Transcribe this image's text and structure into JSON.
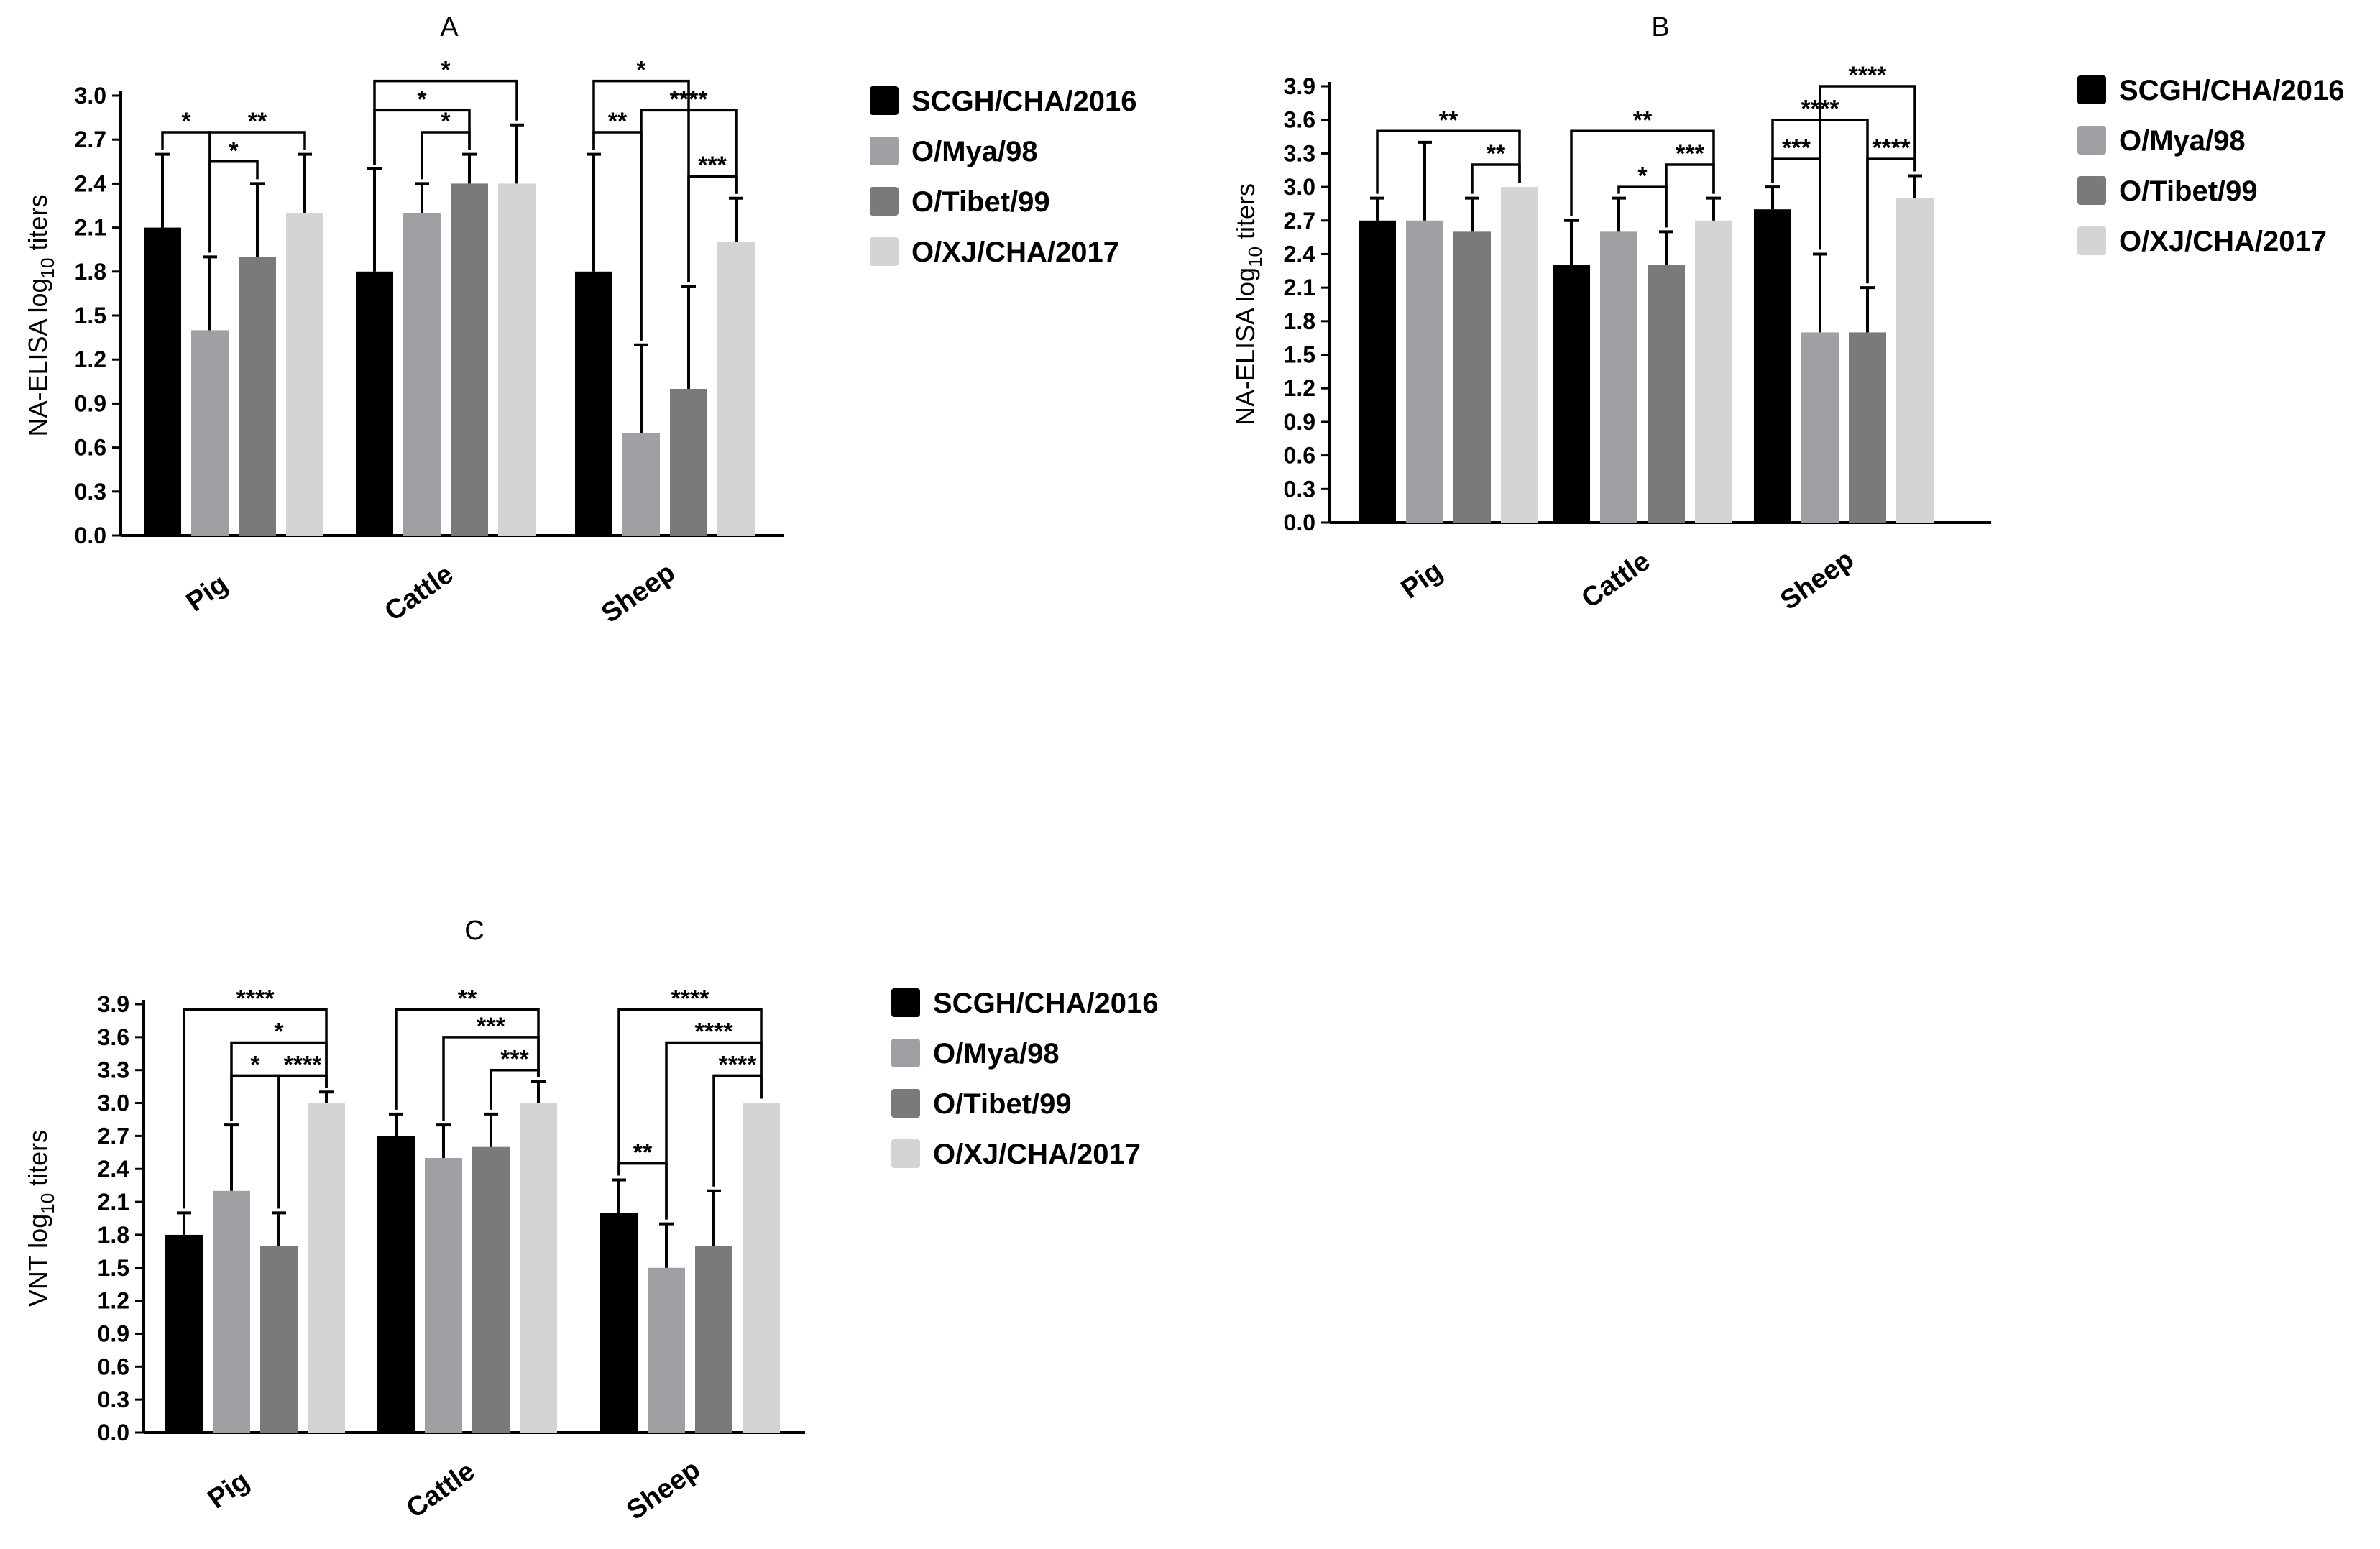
{
  "chart_data": [
    {
      "type": "bar",
      "title": "A",
      "ylabel_prefix": "NA-ELISA log",
      "ylabel_sub": "10",
      "ylabel_suffix": " titers",
      "xlabel": "",
      "ylim": [
        0,
        3.0
      ],
      "yticks": [
        "0.0",
        "0.3",
        "0.6",
        "0.9",
        "1.2",
        "1.5",
        "1.8",
        "2.1",
        "2.4",
        "2.7",
        "3.0"
      ],
      "categories": [
        "Pig",
        "Cattle",
        "Sheep"
      ],
      "series": [
        {
          "name": "SCGH/CHA/2016",
          "color": "#000000",
          "values": [
            2.1,
            1.8,
            1.8
          ],
          "errors": [
            0.5,
            0.7,
            0.8
          ]
        },
        {
          "name": "O/Mya/98",
          "color": "#a0a0a4",
          "values": [
            1.4,
            2.2,
            0.7
          ],
          "errors": [
            0.5,
            0.2,
            0.6
          ]
        },
        {
          "name": "O/Tibet/99",
          "color": "#7a7a7c",
          "values": [
            1.9,
            2.4,
            1.0
          ],
          "errors": [
            0.5,
            0.2,
            0.7
          ]
        },
        {
          "name": "O/XJ/CHA/2017",
          "color": "#d4d4d4",
          "values": [
            2.2,
            2.4,
            2.0
          ],
          "errors": [
            0.4,
            0.4,
            0.3
          ]
        }
      ],
      "annotations": [
        {
          "cat": 0,
          "a": 0,
          "b": 1,
          "level": 2.75,
          "label": "*"
        },
        {
          "cat": 0,
          "a": 1,
          "b": 2,
          "level": 2.55,
          "label": "*"
        },
        {
          "cat": 0,
          "a": 1,
          "b": 3,
          "level": 2.75,
          "label": "**"
        },
        {
          "cat": 1,
          "a": 0,
          "b": 3,
          "level": 3.1,
          "label": "*"
        },
        {
          "cat": 1,
          "a": 0,
          "b": 2,
          "level": 2.9,
          "label": "*"
        },
        {
          "cat": 1,
          "a": 1,
          "b": 2,
          "level": 2.75,
          "label": "*"
        },
        {
          "cat": 2,
          "a": 0,
          "b": 2,
          "level": 3.1,
          "label": "*"
        },
        {
          "cat": 2,
          "a": 0,
          "b": 1,
          "level": 2.75,
          "label": "**"
        },
        {
          "cat": 2,
          "a": 1,
          "b": 3,
          "level": 2.9,
          "label": "****"
        },
        {
          "cat": 2,
          "a": 2,
          "b": 3,
          "level": 2.45,
          "label": "***"
        }
      ],
      "legend_position": "right"
    },
    {
      "type": "bar",
      "title": "B",
      "ylabel_prefix": "NA-ELISA log",
      "ylabel_sub": "10",
      "ylabel_suffix": " titers",
      "xlabel": "",
      "ylim": [
        0,
        3.9
      ],
      "yticks": [
        "0.0",
        "0.3",
        "0.6",
        "0.9",
        "1.2",
        "1.5",
        "1.8",
        "2.1",
        "2.4",
        "2.7",
        "3.0",
        "3.3",
        "3.6",
        "3.9"
      ],
      "categories": [
        "Pig",
        "Cattle",
        "Sheep"
      ],
      "series": [
        {
          "name": "SCGH/CHA/2016",
          "color": "#000000",
          "values": [
            2.7,
            2.3,
            2.8
          ],
          "errors": [
            0.2,
            0.4,
            0.2
          ]
        },
        {
          "name": "O/Mya/98",
          "color": "#a0a0a4",
          "values": [
            2.7,
            2.6,
            1.7
          ],
          "errors": [
            0.7,
            0.3,
            0.7
          ]
        },
        {
          "name": "O/Tibet/99",
          "color": "#7a7a7c",
          "values": [
            2.6,
            2.3,
            1.7
          ],
          "errors": [
            0.3,
            0.3,
            0.4
          ]
        },
        {
          "name": "O/XJ/CHA/2017",
          "color": "#d4d4d4",
          "values": [
            3.0,
            2.7,
            2.9
          ],
          "errors": [
            0.0,
            0.2,
            0.2
          ]
        }
      ],
      "annotations": [
        {
          "cat": 0,
          "a": 0,
          "b": 3,
          "level": 3.5,
          "label": "**"
        },
        {
          "cat": 0,
          "a": 2,
          "b": 3,
          "level": 3.2,
          "label": "**"
        },
        {
          "cat": 1,
          "a": 0,
          "b": 3,
          "level": 3.5,
          "label": "**"
        },
        {
          "cat": 1,
          "a": 1,
          "b": 2,
          "level": 3.0,
          "label": "*"
        },
        {
          "cat": 1,
          "a": 2,
          "b": 3,
          "level": 3.2,
          "label": "***"
        },
        {
          "cat": 2,
          "a": 1,
          "b": 3,
          "level": 3.9,
          "label": "****"
        },
        {
          "cat": 2,
          "a": 0,
          "b": 2,
          "level": 3.6,
          "label": "****"
        },
        {
          "cat": 2,
          "a": 0,
          "b": 1,
          "level": 3.25,
          "label": "***"
        },
        {
          "cat": 2,
          "a": 2,
          "b": 3,
          "level": 3.25,
          "label": "****"
        }
      ],
      "legend_position": "right"
    },
    {
      "type": "bar",
      "title": "C",
      "ylabel_prefix": "VNT log",
      "ylabel_sub": "10",
      "ylabel_suffix": " titers",
      "xlabel": "",
      "ylim": [
        0,
        3.9
      ],
      "yticks": [
        "0.0",
        "0.3",
        "0.6",
        "0.9",
        "1.2",
        "1.5",
        "1.8",
        "2.1",
        "2.4",
        "2.7",
        "3.0",
        "3.3",
        "3.6",
        "3.9"
      ],
      "categories": [
        "Pig",
        "Cattle",
        "Sheep"
      ],
      "series": [
        {
          "name": "SCGH/CHA/2016",
          "color": "#000000",
          "values": [
            1.8,
            2.7,
            2.0
          ],
          "errors": [
            0.2,
            0.2,
            0.3
          ]
        },
        {
          "name": "O/Mya/98",
          "color": "#a0a0a4",
          "values": [
            2.2,
            2.5,
            1.5
          ],
          "errors": [
            0.6,
            0.3,
            0.4
          ]
        },
        {
          "name": "O/Tibet/99",
          "color": "#7a7a7c",
          "values": [
            1.7,
            2.6,
            1.7
          ],
          "errors": [
            0.3,
            0.3,
            0.5
          ]
        },
        {
          "name": "O/XJ/CHA/2017",
          "color": "#d4d4d4",
          "values": [
            3.0,
            3.0,
            3.0
          ],
          "errors": [
            0.1,
            0.2,
            0.0
          ]
        }
      ],
      "annotations": [
        {
          "cat": 0,
          "a": 0,
          "b": 3,
          "level": 3.85,
          "label": "****"
        },
        {
          "cat": 0,
          "a": 1,
          "b": 3,
          "level": 3.55,
          "label": "*"
        },
        {
          "cat": 0,
          "a": 1,
          "b": 2,
          "level": 3.25,
          "label": "*"
        },
        {
          "cat": 0,
          "a": 2,
          "b": 3,
          "level": 3.25,
          "label": "****"
        },
        {
          "cat": 1,
          "a": 0,
          "b": 3,
          "level": 3.85,
          "label": "**"
        },
        {
          "cat": 1,
          "a": 1,
          "b": 3,
          "level": 3.6,
          "label": "***"
        },
        {
          "cat": 1,
          "a": 2,
          "b": 3,
          "level": 3.3,
          "label": "***"
        },
        {
          "cat": 2,
          "a": 0,
          "b": 3,
          "level": 3.85,
          "label": "****"
        },
        {
          "cat": 2,
          "a": 1,
          "b": 3,
          "level": 3.55,
          "label": "****"
        },
        {
          "cat": 2,
          "a": 2,
          "b": 3,
          "level": 3.25,
          "label": "****"
        },
        {
          "cat": 2,
          "a": 0,
          "b": 1,
          "level": 2.45,
          "label": "**"
        }
      ],
      "legend_position": "right"
    }
  ]
}
